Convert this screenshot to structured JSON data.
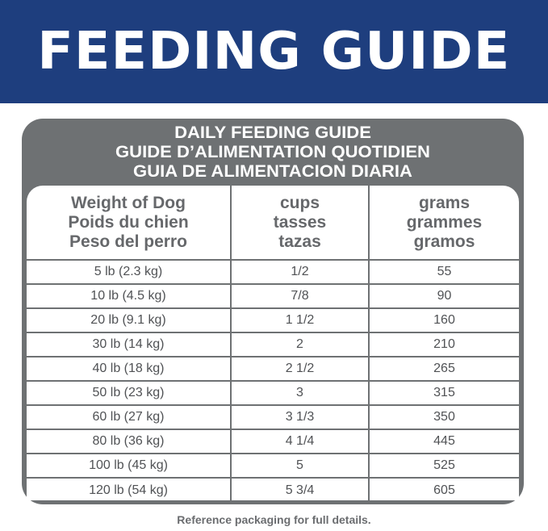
{
  "banner": {
    "title": "FEEDING GUIDE"
  },
  "box": {
    "titles": [
      "DAILY FEEDING GUIDE",
      "GUIDE D’ALIMENTATION QUOTIDIEN",
      "GUIA DE ALIMENTACION DIARIA"
    ]
  },
  "table": {
    "headers": [
      [
        "Weight of Dog",
        "Poids du chien",
        "Peso del perro"
      ],
      [
        "cups",
        "tasses",
        "tazas"
      ],
      [
        "grams",
        "grammes",
        "gramos"
      ]
    ],
    "rows": [
      [
        "5 lb (2.3 kg)",
        "1/2",
        "55"
      ],
      [
        "10 lb (4.5 kg)",
        "7/8",
        "90"
      ],
      [
        "20 lb (9.1 kg)",
        "1 1/2",
        "160"
      ],
      [
        "30 lb (14 kg)",
        "2",
        "210"
      ],
      [
        "40 lb (18 kg)",
        "2 1/2",
        "265"
      ],
      [
        "50 lb (23 kg)",
        "3",
        "315"
      ],
      [
        "60 lb (27 kg)",
        "3 1/3",
        "350"
      ],
      [
        "80 lb (36 kg)",
        "4 1/4",
        "445"
      ],
      [
        "100 lb (45 kg)",
        "5",
        "525"
      ],
      [
        "120 lb (54 kg)",
        "5 3/4",
        "605"
      ]
    ]
  },
  "footer": "Reference packaging for full details.",
  "colors": {
    "banner": "#1e3e7e",
    "frame": "#6e7173"
  }
}
